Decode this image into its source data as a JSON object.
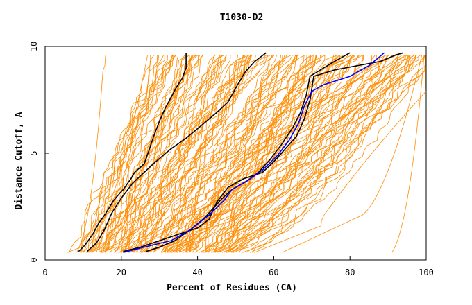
{
  "chart_data": {
    "type": "line",
    "title": "T1030-D2",
    "xlabel": "Percent of Residues (CA)",
    "ylabel": "Distance Cutoff, A",
    "xlim": [
      0,
      100
    ],
    "ylim": [
      0,
      10
    ],
    "x_ticks": [
      0,
      20,
      40,
      60,
      80,
      100
    ],
    "y_ticks": [
      0,
      5,
      10
    ],
    "grid": false,
    "legend": "none",
    "colors": {
      "background_series": "#ff8c00",
      "highlight_black": "#000000",
      "highlight_blue": "#0000ff"
    },
    "highlight_series": [
      {
        "color": "#000000",
        "points": [
          [
            8.8,
            0.4
          ],
          [
            10.5,
            0.7
          ],
          [
            12.5,
            1.2
          ],
          [
            14,
            1.7
          ],
          [
            16,
            2.2
          ],
          [
            18,
            2.8
          ],
          [
            20.5,
            3.3
          ],
          [
            22.5,
            3.8
          ],
          [
            23.5,
            4.1
          ],
          [
            26,
            4.5
          ],
          [
            27,
            5
          ],
          [
            28.5,
            5.8
          ],
          [
            30,
            6.5
          ],
          [
            31.5,
            7.1
          ],
          [
            33,
            7.6
          ],
          [
            34.5,
            8.1
          ],
          [
            36,
            8.5
          ],
          [
            37,
            9
          ],
          [
            37,
            9.7
          ]
        ]
      },
      {
        "color": "#000000",
        "points": [
          [
            11,
            0.4
          ],
          [
            13.5,
            0.8
          ],
          [
            15.5,
            1.4
          ],
          [
            17.5,
            2.2
          ],
          [
            20,
            2.9
          ],
          [
            23,
            3.6
          ],
          [
            26,
            4.1
          ],
          [
            29,
            4.6
          ],
          [
            33,
            5.2
          ],
          [
            37,
            5.7
          ],
          [
            41,
            6.3
          ],
          [
            45,
            6.9
          ],
          [
            48,
            7.4
          ],
          [
            50.5,
            8.2
          ],
          [
            52.5,
            8.8
          ],
          [
            55,
            9.3
          ],
          [
            58,
            9.7
          ]
        ]
      },
      {
        "color": "#000000",
        "points": [
          [
            20.5,
            0.4
          ],
          [
            25,
            0.6
          ],
          [
            30,
            0.9
          ],
          [
            35,
            1.2
          ],
          [
            40,
            1.5
          ],
          [
            43,
            1.9
          ],
          [
            45,
            2.7
          ],
          [
            48,
            3.4
          ],
          [
            52,
            3.8
          ],
          [
            57,
            4.1
          ],
          [
            60,
            4.6
          ],
          [
            63,
            5.2
          ],
          [
            66,
            5.8
          ],
          [
            68,
            6.6
          ],
          [
            69.5,
            7.5
          ],
          [
            70.5,
            8.6
          ],
          [
            76,
            8.9
          ],
          [
            82,
            9.1
          ],
          [
            88,
            9.3
          ],
          [
            92,
            9.6
          ],
          [
            94,
            9.7
          ]
        ]
      },
      {
        "color": "#000000",
        "points": [
          [
            26.5,
            0.4
          ],
          [
            30,
            0.6
          ],
          [
            34,
            0.9
          ],
          [
            38,
            1.4
          ],
          [
            42,
            2
          ],
          [
            46,
            2.8
          ],
          [
            49,
            3.3
          ],
          [
            53,
            3.7
          ],
          [
            56,
            4.1
          ],
          [
            59,
            4.7
          ],
          [
            62,
            5.4
          ],
          [
            65,
            6.2
          ],
          [
            67,
            6.9
          ],
          [
            68.5,
            7.7
          ],
          [
            69.5,
            8.6
          ],
          [
            75,
            9.2
          ],
          [
            80,
            9.7
          ]
        ]
      },
      {
        "color": "#0000ff",
        "points": [
          [
            20.5,
            0.35
          ],
          [
            26,
            0.6
          ],
          [
            33,
            0.9
          ],
          [
            38,
            1.4
          ],
          [
            43,
            2.1
          ],
          [
            47,
            2.8
          ],
          [
            49,
            3.3
          ],
          [
            53,
            3.7
          ],
          [
            57,
            4.2
          ],
          [
            61,
            4.9
          ],
          [
            64,
            5.6
          ],
          [
            66.5,
            6.4
          ],
          [
            68,
            7.2
          ],
          [
            70,
            7.9
          ],
          [
            73,
            8.2
          ],
          [
            80,
            8.6
          ],
          [
            85,
            9.1
          ],
          [
            89,
            9.7
          ]
        ]
      }
    ]
  }
}
